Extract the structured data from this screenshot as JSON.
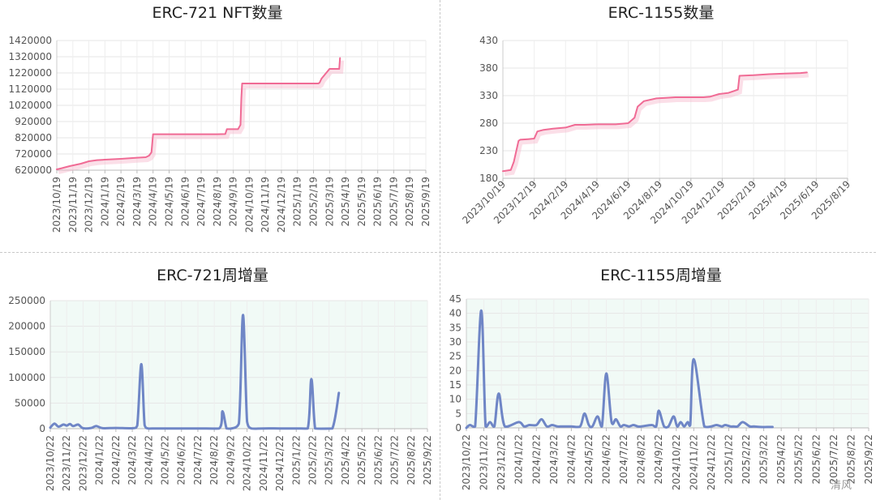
{
  "watermark": "清风",
  "chart_data": [
    {
      "id": "erc721-total",
      "type": "line",
      "title": "ERC-721 NFT数量",
      "x_ticks": [
        "2023/10/19",
        "2023/11/19",
        "2023/12/19",
        "2024/1/19",
        "2024/2/19",
        "2024/3/19",
        "2024/4/19",
        "2024/5/19",
        "2024/6/19",
        "2024/7/19",
        "2024/8/19",
        "2024/9/19",
        "2024/10/19",
        "2024/11/19",
        "2024/12/19",
        "2025/1/19",
        "2025/2/19",
        "2025/3/19",
        "2025/4/19",
        "2025/5/19",
        "2025/6/19",
        "2025/7/19",
        "2025/8/19",
        "2025/9/19"
      ],
      "y_ticks": [
        620000,
        720000,
        820000,
        920000,
        1020000,
        1120000,
        1220000,
        1320000,
        1420000
      ],
      "ylim": [
        620000,
        1420000
      ],
      "color": "#f06b95",
      "grid": true,
      "series": [
        {
          "x": [
            0,
            0.3,
            0.8,
            1.5,
            2.0,
            2.5,
            3.0,
            4.0,
            5.0,
            5.55,
            5.75,
            5.9,
            6.0,
            7.0,
            8.0,
            9.0,
            10.0,
            10.5,
            10.6,
            11.3,
            11.45,
            11.5,
            11.55,
            12.0,
            13.0,
            13.5,
            14.5,
            15.8,
            16.3,
            16.38,
            16.5,
            17.0,
            17.5,
            17.6,
            17.65
          ],
          "y": [
            625000,
            632000,
            645000,
            660000,
            675000,
            682000,
            685000,
            690000,
            697000,
            700000,
            710000,
            730000,
            842000,
            842000,
            842000,
            842000,
            842000,
            843000,
            873000,
            873000,
            900000,
            1060000,
            1155000,
            1155000,
            1155000,
            1155000,
            1155000,
            1155000,
            1155000,
            1160000,
            1185000,
            1245000,
            1245000,
            1245000,
            1312000
          ]
        }
      ]
    },
    {
      "id": "erc1155-total",
      "type": "line",
      "title": "ERC-1155数量",
      "x_ticks": [
        "2023/10/19",
        "2023/12/19",
        "2024/2/19",
        "2024/4/19",
        "2024/6/19",
        "2024/8/19",
        "2024/10/19",
        "2024/12/19",
        "2025/2/19",
        "2025/4/19",
        "2025/6/19",
        "2025/8/19"
      ],
      "y_ticks": [
        180,
        230,
        280,
        330,
        380,
        430
      ],
      "ylim": [
        180,
        430
      ],
      "color": "#f06b95",
      "grid": true,
      "series": [
        {
          "x": [
            0,
            0.25,
            0.35,
            0.5,
            0.55,
            0.8,
            1.0,
            1.1,
            1.3,
            1.6,
            2.0,
            2.3,
            2.6,
            3.0,
            3.6,
            4.0,
            4.2,
            4.3,
            4.5,
            4.9,
            5.2,
            5.5,
            6.0,
            6.4,
            6.6,
            6.9,
            7.2,
            7.4,
            7.5,
            7.55,
            8.0,
            8.5,
            9.0,
            9.5,
            9.7
          ],
          "y": [
            193,
            195,
            210,
            248,
            250,
            251,
            252,
            265,
            268,
            270,
            272,
            277,
            277,
            278,
            278,
            280,
            290,
            310,
            320,
            325,
            326,
            327,
            327,
            327,
            328,
            333,
            335,
            339,
            341,
            366,
            367,
            369,
            370,
            371,
            372
          ]
        }
      ]
    },
    {
      "id": "erc721-weekly",
      "type": "area",
      "title": "ERC-721周增量",
      "x_ticks": [
        "2023/10/22",
        "2023/11/22",
        "2023/12/22",
        "2024/1/22",
        "2024/2/22",
        "2024/3/22",
        "2024/4/22",
        "2024/5/22",
        "2024/6/22",
        "2024/7/22",
        "2024/8/22",
        "2024/9/22",
        "2024/10/22",
        "2024/11/22",
        "2024/12/22",
        "2025/1/22",
        "2025/2/22",
        "2025/3/22",
        "2025/4/22",
        "2025/5/22",
        "2025/6/22",
        "2025/7/22",
        "2025/8/22",
        "2025/9/22"
      ],
      "y_ticks": [
        0,
        50000,
        100000,
        150000,
        200000,
        250000
      ],
      "ylim": [
        0,
        250000
      ],
      "color": "#6f86c6",
      "grid": true,
      "series": [
        {
          "x": [
            0,
            0.25,
            0.5,
            0.8,
            1.0,
            1.2,
            1.4,
            1.7,
            2.0,
            2.5,
            2.8,
            3.2,
            4.0,
            5.0,
            5.3,
            5.55,
            5.75,
            5.95,
            6.2,
            7.0,
            8.0,
            9.0,
            10.3,
            10.5,
            10.75,
            11.0,
            11.5,
            11.75,
            12.0,
            12.25,
            12.5,
            13.0,
            14.0,
            15.0,
            15.7,
            15.92,
            16.15,
            16.5,
            17.2,
            17.6
          ],
          "y": [
            2000,
            10000,
            4000,
            8000,
            6000,
            9000,
            5000,
            8000,
            1000,
            1500,
            5000,
            1000,
            1500,
            1000,
            6000,
            126000,
            7000,
            500,
            300,
            500,
            500,
            500,
            500,
            34000,
            500,
            0,
            10000,
            222000,
            14000,
            500,
            0,
            500,
            500,
            500,
            500,
            97000,
            500,
            0,
            300,
            70000
          ]
        }
      ]
    },
    {
      "id": "erc1155-weekly",
      "type": "area",
      "title": "ERC-1155周增量",
      "x_ticks": [
        "2023/10/22",
        "2023/11/22",
        "2023/12/22",
        "2024/1/22",
        "2024/2/22",
        "2024/3/22",
        "2024/4/22",
        "2024/5/22",
        "2024/6/22",
        "2024/7/22",
        "2024/8/22",
        "2024/9/22",
        "2024/10/22",
        "2024/11/22",
        "2024/12/22",
        "2025/1/22",
        "2025/2/22",
        "2025/3/22",
        "2025/4/22",
        "2025/5/22",
        "2025/6/22",
        "2025/7/22",
        "2025/8/22",
        "2025/9/22"
      ],
      "y_ticks": [
        0,
        5,
        10,
        15,
        20,
        25,
        30,
        35,
        40,
        45
      ],
      "ylim": [
        0,
        45
      ],
      "color": "#6f86c6",
      "grid": true,
      "series": [
        {
          "x": [
            0,
            0.2,
            0.5,
            0.85,
            1.1,
            1.35,
            1.6,
            1.85,
            2.2,
            3.0,
            3.3,
            3.6,
            4.0,
            4.3,
            4.6,
            4.9,
            5.2,
            5.5,
            6.0,
            6.5,
            6.75,
            7.0,
            7.2,
            7.5,
            7.75,
            8.0,
            8.3,
            8.55,
            8.8,
            9.0,
            9.3,
            9.55,
            9.8,
            10.0,
            10.6,
            10.85,
            11.0,
            11.3,
            11.55,
            11.85,
            12.05,
            12.25,
            12.45,
            12.65,
            12.8,
            13.0,
            13.6,
            14.0,
            14.3,
            14.6,
            14.8,
            15.1,
            15.3,
            15.5,
            15.8,
            16.2,
            16.45,
            16.8,
            17.2,
            17.5
          ],
          "y": [
            0,
            1,
            0.5,
            41,
            0.5,
            2,
            0.5,
            12,
            0.5,
            2,
            0.5,
            1,
            1,
            3,
            0.5,
            1,
            0.5,
            0.5,
            0.5,
            0.5,
            5,
            1,
            0.5,
            4,
            0.5,
            19,
            2,
            3,
            0.5,
            1,
            0.5,
            1,
            0.5,
            0.5,
            1,
            0.5,
            6,
            0.5,
            0.5,
            4,
            0.5,
            2,
            0.5,
            2,
            1,
            24,
            0.5,
            0.5,
            1,
            0.5,
            1,
            0.5,
            0.5,
            0.5,
            2,
            0.5,
            0.5,
            0.3,
            0.3,
            0.3
          ]
        }
      ]
    }
  ]
}
